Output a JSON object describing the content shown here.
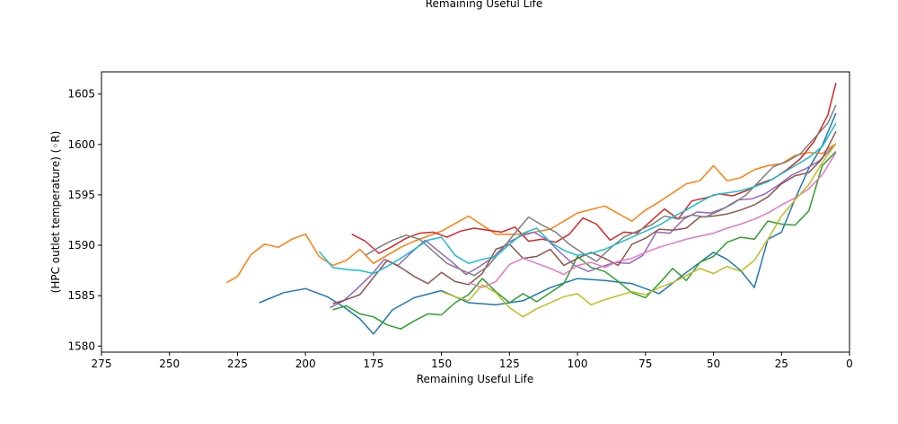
{
  "chart_data": {
    "type": "line",
    "title": "Remaining Useful Life",
    "xlabel": "Remaining Useful Life",
    "ylabel": "(HPC outlet temperature) (◦R)",
    "xlim": [
      275,
      0
    ],
    "ylim": [
      1579.4,
      1607.2
    ],
    "x_inverted": true,
    "grid": false,
    "legend": "none",
    "xticks": [
      275,
      250,
      225,
      200,
      175,
      150,
      125,
      100,
      75,
      50,
      25,
      0
    ],
    "yticks": [
      1580,
      1585,
      1590,
      1595,
      1600,
      1605
    ],
    "series": [
      {
        "color": "#1f77b4",
        "x": [
          217,
          208,
          200,
          192,
          186,
          180,
          175,
          168,
          160,
          150,
          140,
          130,
          120,
          110,
          100,
          90,
          80,
          70,
          60,
          50,
          45,
          40,
          35,
          30,
          25,
          20,
          15,
          10,
          5
        ],
        "y": [
          1584.3,
          1585.3,
          1585.7,
          1584.9,
          1583.9,
          1582.7,
          1581.2,
          1583.6,
          1584.8,
          1585.5,
          1584.3,
          1584.1,
          1584.5,
          1585.8,
          1586.7,
          1586.5,
          1586.2,
          1585.2,
          1587.3,
          1589.3,
          1588.6,
          1587.5,
          1585.8,
          1590.6,
          1591.3,
          1594.6,
          1597.6,
          1599.9,
          1603.1
        ]
      },
      {
        "color": "#ff7f0e",
        "x": [
          229,
          225,
          220,
          215,
          210,
          205,
          200,
          195,
          190,
          185,
          180,
          175,
          165,
          160,
          150,
          140,
          130,
          120,
          110,
          100,
          90,
          80,
          75,
          70,
          65,
          60,
          55,
          50,
          45,
          40,
          35,
          30,
          25,
          20,
          15,
          10,
          5
        ],
        "y": [
          1586.3,
          1586.9,
          1589.1,
          1590.1,
          1589.8,
          1590.6,
          1591.1,
          1588.9,
          1588.0,
          1588.5,
          1589.6,
          1588.2,
          1589.8,
          1590.4,
          1591.4,
          1592.9,
          1591.1,
          1591.1,
          1591.6,
          1593.2,
          1593.9,
          1592.4,
          1593.5,
          1594.3,
          1595.2,
          1596.1,
          1596.4,
          1597.9,
          1596.4,
          1596.7,
          1597.5,
          1597.9,
          1598.1,
          1598.9,
          1599.2,
          1599.1,
          1600.1
        ]
      },
      {
        "color": "#2ca02c",
        "x": [
          190,
          185,
          180,
          175,
          170,
          165,
          160,
          155,
          150,
          145,
          140,
          135,
          130,
          125,
          120,
          115,
          110,
          105,
          100,
          95,
          90,
          85,
          80,
          75,
          70,
          65,
          60,
          55,
          50,
          45,
          40,
          35,
          30,
          25,
          20,
          15,
          10,
          5
        ],
        "y": [
          1583.6,
          1584.0,
          1583.2,
          1582.9,
          1582.1,
          1581.7,
          1582.5,
          1583.2,
          1583.1,
          1584.3,
          1585.1,
          1586.7,
          1585.4,
          1584.3,
          1585.2,
          1584.4,
          1585.3,
          1586.2,
          1588.9,
          1587.8,
          1587.4,
          1586.4,
          1585.3,
          1584.8,
          1586.2,
          1587.7,
          1586.5,
          1588.3,
          1588.9,
          1590.3,
          1590.8,
          1590.6,
          1592.4,
          1592.1,
          1592.0,
          1593.4,
          1597.9,
          1599.3
        ]
      },
      {
        "color": "#d62728",
        "x": [
          183,
          178,
          173,
          168,
          163,
          158,
          153,
          148,
          143,
          138,
          133,
          128,
          123,
          118,
          113,
          108,
          103,
          98,
          93,
          88,
          83,
          78,
          73,
          68,
          63,
          58,
          53,
          48,
          43,
          38,
          33,
          28,
          23,
          18,
          13,
          8,
          5
        ],
        "y": [
          1591.1,
          1590.4,
          1589.2,
          1589.9,
          1590.7,
          1591.2,
          1591.3,
          1590.8,
          1591.4,
          1591.7,
          1591.5,
          1591.3,
          1591.8,
          1590.4,
          1590.6,
          1590.3,
          1591.1,
          1592.7,
          1592.1,
          1590.5,
          1591.3,
          1591.2,
          1592.4,
          1593.6,
          1592.6,
          1594.4,
          1594.7,
          1595.1,
          1594.9,
          1595.4,
          1596.1,
          1596.6,
          1597.5,
          1598.6,
          1600.3,
          1602.9,
          1606.1
        ]
      },
      {
        "color": "#9467bd",
        "x": [
          191,
          186,
          181,
          176,
          171,
          166,
          161,
          156,
          151,
          146,
          141,
          136,
          131,
          126,
          121,
          116,
          111,
          106,
          101,
          96,
          91,
          86,
          81,
          76,
          71,
          66,
          61,
          56,
          51,
          46,
          41,
          36,
          31,
          26,
          21,
          16,
          11,
          6
        ],
        "y": [
          1583.8,
          1584.5,
          1585.7,
          1587.0,
          1588.6,
          1588.0,
          1589.3,
          1590.5,
          1589.4,
          1588.3,
          1587.1,
          1587.9,
          1588.8,
          1590.2,
          1590.9,
          1591.3,
          1590.5,
          1589.2,
          1588.0,
          1587.4,
          1587.9,
          1588.3,
          1588.2,
          1589.0,
          1591.3,
          1591.2,
          1592.6,
          1593.3,
          1593.2,
          1593.7,
          1594.5,
          1594.6,
          1595.1,
          1596.0,
          1597.0,
          1597.6,
          1598.4,
          1599.8
        ]
      },
      {
        "color": "#8c564b",
        "x": [
          190,
          185,
          180,
          175,
          170,
          165,
          160,
          155,
          150,
          145,
          140,
          135,
          130,
          125,
          120,
          115,
          110,
          105,
          100,
          95,
          90,
          85,
          80,
          75,
          70,
          65,
          60,
          55,
          50,
          45,
          40,
          35,
          30,
          25,
          20,
          15,
          10,
          5
        ],
        "y": [
          1584.2,
          1584.6,
          1585.1,
          1586.8,
          1588.5,
          1587.8,
          1586.9,
          1586.2,
          1587.3,
          1586.4,
          1586.1,
          1587.2,
          1589.6,
          1590.1,
          1588.7,
          1588.9,
          1589.6,
          1588.0,
          1588.7,
          1589.3,
          1588.7,
          1588.0,
          1590.1,
          1590.7,
          1591.6,
          1591.5,
          1591.7,
          1592.8,
          1592.9,
          1593.1,
          1593.5,
          1594.0,
          1594.8,
          1596.1,
          1596.9,
          1597.2,
          1598.6,
          1601.3
        ]
      },
      {
        "color": "#e377c2",
        "x": [
          140,
          135,
          130,
          125,
          120,
          115,
          110,
          105,
          100,
          95,
          90,
          85,
          80,
          75,
          70,
          65,
          60,
          55,
          50,
          45,
          40,
          35,
          30,
          25,
          20,
          15,
          10,
          5
        ],
        "y": [
          1586.3,
          1585.8,
          1586.4,
          1588.1,
          1588.7,
          1588.2,
          1587.7,
          1587.1,
          1588.0,
          1588.3,
          1587.8,
          1588.4,
          1588.7,
          1589.3,
          1589.8,
          1590.2,
          1590.6,
          1590.9,
          1591.2,
          1591.7,
          1592.1,
          1592.6,
          1593.2,
          1594.0,
          1594.7,
          1595.6,
          1597.0,
          1599.2
        ]
      },
      {
        "color": "#7f7f7f",
        "x": [
          178,
          173,
          168,
          163,
          158,
          153,
          148,
          143,
          138,
          133,
          128,
          123,
          118,
          113,
          108,
          103,
          98,
          93,
          88,
          83,
          78,
          73,
          68,
          63,
          58,
          53,
          48,
          43,
          38,
          33,
          28,
          23,
          18,
          13,
          8,
          5
        ],
        "y": [
          1589.0,
          1589.8,
          1590.5,
          1591.0,
          1590.6,
          1589.4,
          1588.2,
          1587.6,
          1587.0,
          1587.9,
          1589.5,
          1591.2,
          1592.8,
          1592.0,
          1591.3,
          1590.1,
          1589.2,
          1588.4,
          1589.7,
          1590.8,
          1591.4,
          1592.0,
          1592.9,
          1592.6,
          1593.0,
          1592.8,
          1593.4,
          1594.1,
          1595.0,
          1596.4,
          1597.8,
          1598.3,
          1599.1,
          1600.6,
          1602.1,
          1603.9
        ]
      },
      {
        "color": "#bcbd22",
        "x": [
          150,
          145,
          140,
          135,
          130,
          125,
          120,
          115,
          110,
          105,
          100,
          95,
          90,
          85,
          80,
          75,
          70,
          65,
          60,
          55,
          50,
          45,
          40,
          35,
          30,
          25,
          20,
          15,
          10,
          5
        ],
        "y": [
          1585.4,
          1584.9,
          1584.5,
          1586.1,
          1585.3,
          1583.8,
          1582.9,
          1583.7,
          1584.3,
          1584.9,
          1585.2,
          1584.1,
          1584.6,
          1585.0,
          1585.4,
          1585.1,
          1585.8,
          1586.3,
          1587.0,
          1587.7,
          1587.2,
          1587.9,
          1587.4,
          1588.5,
          1590.6,
          1592.9,
          1594.5,
          1596.0,
          1598.2,
          1600.1
        ]
      },
      {
        "color": "#17becf",
        "x": [
          195,
          190,
          185,
          180,
          175,
          170,
          165,
          160,
          155,
          150,
          145,
          140,
          135,
          130,
          125,
          120,
          115,
          110,
          105,
          100,
          95,
          90,
          85,
          80,
          75,
          70,
          65,
          60,
          55,
          50,
          45,
          40,
          35,
          30,
          25,
          20,
          15,
          10,
          5
        ],
        "y": [
          1589.4,
          1587.8,
          1587.6,
          1587.5,
          1587.2,
          1587.9,
          1588.7,
          1589.6,
          1590.5,
          1590.8,
          1589.0,
          1588.2,
          1588.6,
          1588.9,
          1590.1,
          1591.2,
          1591.7,
          1590.3,
          1589.5,
          1589.0,
          1589.2,
          1589.6,
          1590.2,
          1590.8,
          1591.4,
          1592.0,
          1592.8,
          1593.5,
          1594.3,
          1595.0,
          1595.2,
          1595.4,
          1595.8,
          1596.3,
          1597.1,
          1597.9,
          1598.7,
          1599.8,
          1602.1
        ]
      }
    ]
  }
}
